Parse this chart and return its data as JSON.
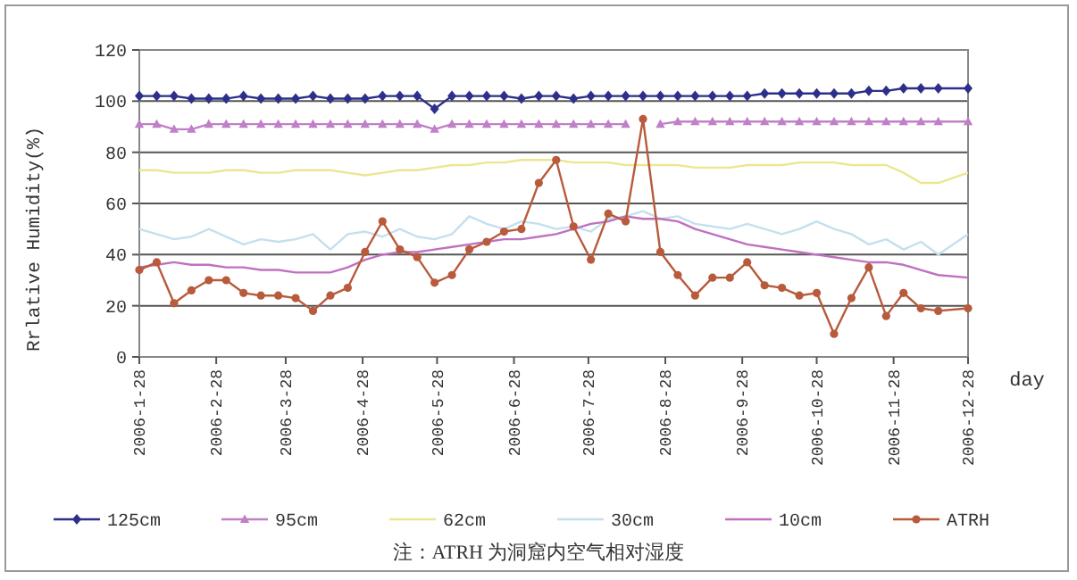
{
  "chart_data": {
    "type": "line",
    "ylabel": "Rrlative Humidity(%)",
    "xlabel": "day",
    "x": [
      "2006-01-28",
      "2006-02-04",
      "2006-02-11",
      "2006-02-18",
      "2006-02-25",
      "2006-03-04",
      "2006-03-11",
      "2006-03-18",
      "2006-03-25",
      "2006-04-01",
      "2006-04-08",
      "2006-04-15",
      "2006-04-22",
      "2006-04-29",
      "2006-05-06",
      "2006-05-13",
      "2006-05-20",
      "2006-05-27",
      "2006-06-03",
      "2006-06-10",
      "2006-06-17",
      "2006-06-24",
      "2006-07-01",
      "2006-07-08",
      "2006-07-15",
      "2006-07-22",
      "2006-07-29",
      "2006-08-05",
      "2006-08-12",
      "2006-08-19",
      "2006-08-26",
      "2006-09-02",
      "2006-09-09",
      "2006-09-16",
      "2006-09-23",
      "2006-09-30",
      "2006-10-07",
      "2006-10-14",
      "2006-10-21",
      "2006-10-28",
      "2006-11-04",
      "2006-11-11",
      "2006-11-18",
      "2006-11-25",
      "2006-12-02",
      "2006-12-09",
      "2006-12-16",
      "2006-12-28"
    ],
    "xlim": [
      "2006-01-28",
      "2006-12-28"
    ],
    "xticks": [
      {
        "value": "2006-01-28",
        "label": "2006-1-28"
      },
      {
        "value": "2006-02-28",
        "label": "2006-2-28"
      },
      {
        "value": "2006-03-28",
        "label": "2006-3-28"
      },
      {
        "value": "2006-04-28",
        "label": "2006-4-28"
      },
      {
        "value": "2006-05-28",
        "label": "2006-5-28"
      },
      {
        "value": "2006-06-28",
        "label": "2006-6-28"
      },
      {
        "value": "2006-07-28",
        "label": "2006-7-28"
      },
      {
        "value": "2006-08-28",
        "label": "2006-8-28"
      },
      {
        "value": "2006-09-28",
        "label": "2006-9-28"
      },
      {
        "value": "2006-10-28",
        "label": "2006-10-28"
      },
      {
        "value": "2006-11-28",
        "label": "2006-11-28"
      },
      {
        "value": "2006-12-28",
        "label": "2006-12-28"
      }
    ],
    "ylim": [
      0,
      120
    ],
    "yticks": [
      0,
      20,
      40,
      60,
      80,
      100,
      120
    ],
    "grid": "y",
    "legend": "bottom",
    "annotations": [
      "注：ATRH 为洞窟内空气相对湿度"
    ],
    "series": [
      {
        "name": "125cm",
        "color": "#2e2f8a",
        "marker": "diamond",
        "values": [
          102,
          102,
          102,
          101,
          101,
          101,
          102,
          101,
          101,
          101,
          102,
          101,
          101,
          101,
          102,
          102,
          102,
          97,
          102,
          102,
          102,
          102,
          101,
          102,
          102,
          101,
          102,
          102,
          102,
          102,
          102,
          102,
          102,
          102,
          102,
          102,
          103,
          103,
          103,
          103,
          103,
          103,
          104,
          104,
          105,
          105,
          105,
          105
        ]
      },
      {
        "name": "95cm",
        "color": "#c080c8",
        "marker": "triangle",
        "values": [
          91,
          91,
          89,
          89,
          91,
          91,
          91,
          91,
          91,
          91,
          91,
          91,
          91,
          91,
          91,
          91,
          91,
          89,
          91,
          91,
          91,
          91,
          91,
          91,
          91,
          91,
          91,
          91,
          91,
          null,
          91,
          92,
          92,
          92,
          92,
          92,
          92,
          92,
          92,
          92,
          92,
          92,
          92,
          92,
          92,
          92,
          92,
          92
        ]
      },
      {
        "name": "62cm",
        "color": "#ece690",
        "marker": "none",
        "values": [
          73,
          73,
          72,
          72,
          72,
          73,
          73,
          72,
          72,
          73,
          73,
          73,
          72,
          71,
          72,
          73,
          73,
          74,
          75,
          75,
          76,
          76,
          77,
          77,
          77,
          76,
          76,
          76,
          75,
          75,
          75,
          75,
          74,
          74,
          74,
          75,
          75,
          75,
          76,
          76,
          76,
          75,
          75,
          75,
          72,
          68,
          68,
          72
        ]
      },
      {
        "name": "30cm",
        "color": "#c4e0ee",
        "marker": "none",
        "values": [
          50,
          48,
          46,
          47,
          50,
          47,
          44,
          46,
          45,
          46,
          48,
          42,
          48,
          49,
          47,
          50,
          47,
          46,
          48,
          55,
          52,
          50,
          53,
          52,
          50,
          51,
          49,
          54,
          55,
          57,
          54,
          55,
          52,
          51,
          50,
          52,
          50,
          48,
          50,
          53,
          50,
          48,
          44,
          46,
          42,
          45,
          40,
          48
        ]
      },
      {
        "name": "10cm",
        "color": "#c070c0",
        "marker": "none",
        "values": [
          35,
          36,
          37,
          36,
          36,
          35,
          35,
          34,
          34,
          33,
          33,
          33,
          35,
          38,
          40,
          41,
          41,
          42,
          43,
          44,
          45,
          46,
          46,
          47,
          48,
          50,
          52,
          53,
          55,
          54,
          54,
          53,
          50,
          48,
          46,
          44,
          43,
          42,
          41,
          40,
          39,
          38,
          37,
          37,
          36,
          34,
          32,
          31
        ]
      },
      {
        "name": "ATRH",
        "color": "#b85a3c",
        "marker": "circle",
        "values": [
          34,
          37,
          21,
          26,
          30,
          30,
          25,
          24,
          24,
          23,
          18,
          24,
          27,
          41,
          53,
          42,
          39,
          29,
          32,
          42,
          45,
          49,
          50,
          68,
          77,
          51,
          38,
          56,
          53,
          93,
          41,
          32,
          24,
          31,
          31,
          37,
          28,
          27,
          24,
          25,
          9,
          23,
          35,
          16,
          25,
          19,
          18,
          19
        ]
      }
    ]
  }
}
